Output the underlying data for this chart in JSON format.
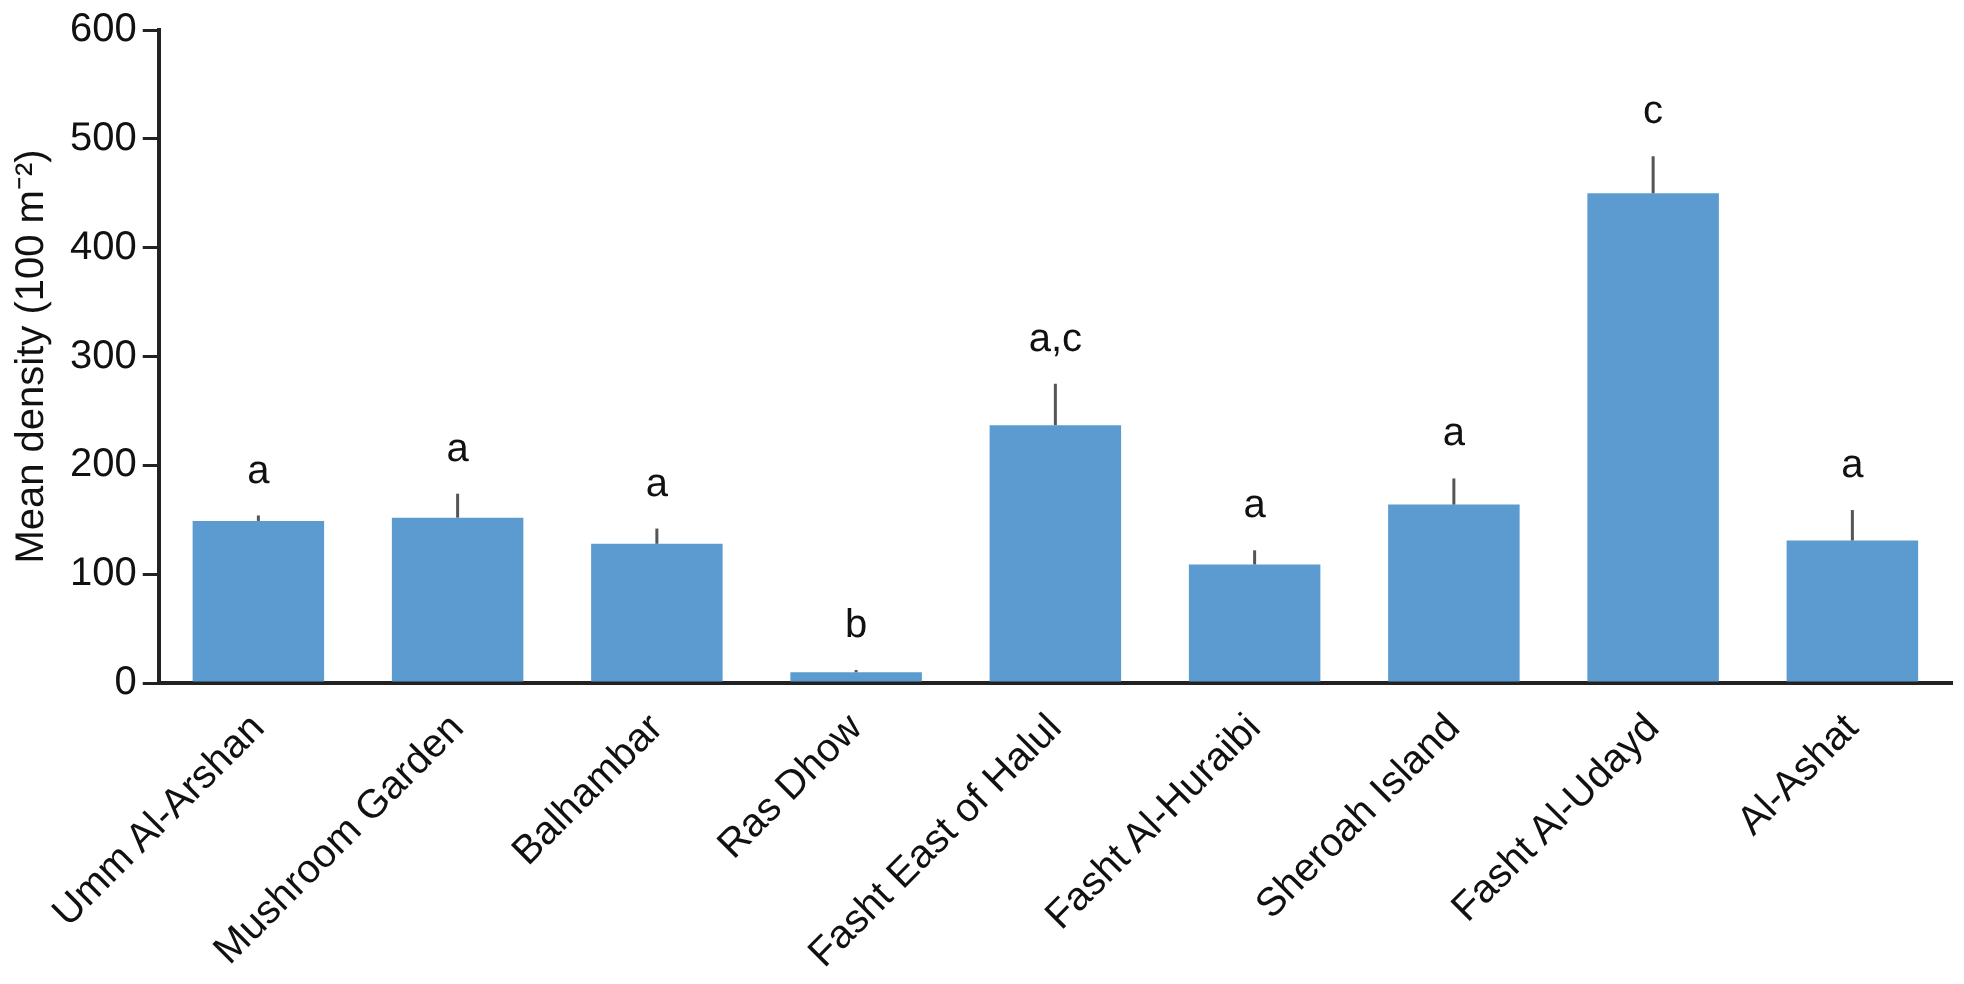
{
  "chart_data": {
    "type": "bar",
    "ylabel": "Mean density (100 m⁻²)",
    "categories": [
      "Umm Al-Arshan",
      "Mushroom Garden",
      "Balhambar",
      "Ras Dhow",
      "Fasht East of Halul",
      "Fasht Al-Huraibi",
      "Sheroah Island",
      "Fasht Al-Udayd",
      "Al-Ashat"
    ],
    "values": [
      149,
      152,
      128,
      10,
      237,
      109,
      164,
      450,
      131
    ],
    "errors": [
      5,
      22,
      14,
      2,
      38,
      13,
      24,
      34,
      28
    ],
    "color": "#5b9bd0",
    "ylim": [
      0,
      600
    ],
    "yticks": [
      0,
      100,
      200,
      300,
      400,
      500,
      600
    ],
    "grid": false,
    "legend": false,
    "annotations": [
      {
        "text": "a",
        "x": "Umm Al-Arshan",
        "y": 154
      },
      {
        "text": "a",
        "x": "Mushroom Garden",
        "y": 174
      },
      {
        "text": "a",
        "x": "Balhambar",
        "y": 142
      },
      {
        "text": "b",
        "x": "Ras Dhow",
        "y": 12
      },
      {
        "text": "a,c",
        "x": "Fasht East of Halul",
        "y": 275
      },
      {
        "text": "a",
        "x": "Fasht Al-Huraibi",
        "y": 122
      },
      {
        "text": "a",
        "x": "Sheroah Island",
        "y": 188
      },
      {
        "text": "c",
        "x": "Fasht Al-Udayd",
        "y": 484
      },
      {
        "text": "a",
        "x": "Al-Ashat",
        "y": 159
      }
    ]
  }
}
